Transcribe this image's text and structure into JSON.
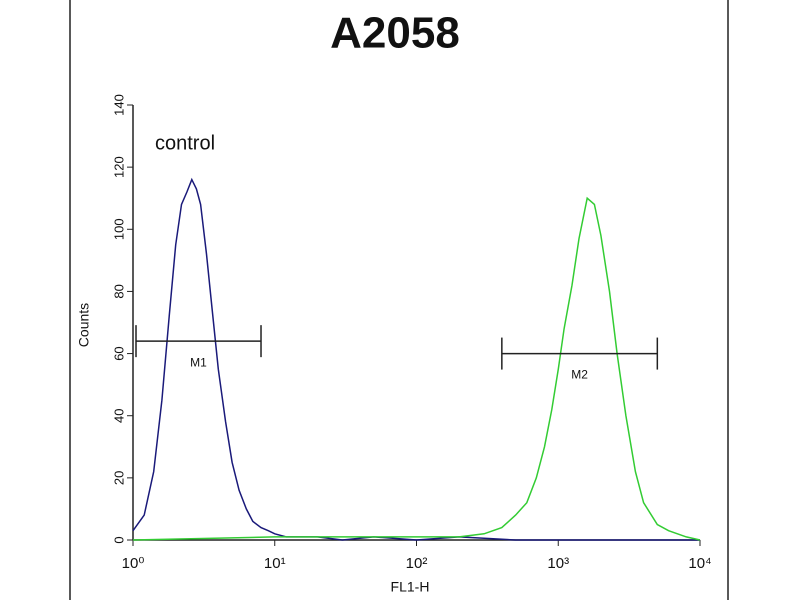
{
  "chart_data": {
    "type": "line",
    "title": "A2058",
    "x_label": "FL1-H",
    "y_label": "Counts",
    "annotation": "control",
    "xscale": "log",
    "xlim": [
      1,
      10000
    ],
    "ylim": [
      0,
      140
    ],
    "xticks": [
      {
        "value": 1,
        "label": "10⁰"
      },
      {
        "value": 10,
        "label": "10¹"
      },
      {
        "value": 100,
        "label": "10²"
      },
      {
        "value": 1000,
        "label": "10³"
      },
      {
        "value": 10000,
        "label": "10⁴"
      }
    ],
    "yticks": [
      0,
      20,
      40,
      60,
      80,
      100,
      120,
      140
    ],
    "series": [
      {
        "name": "control",
        "color": "#1a1a7a",
        "x": [
          1,
          1.2,
          1.4,
          1.6,
          1.8,
          2.0,
          2.2,
          2.4,
          2.6,
          2.8,
          3.0,
          3.3,
          3.6,
          4.0,
          4.5,
          5,
          5.6,
          6.3,
          7,
          8,
          9,
          10,
          12,
          15,
          20,
          30,
          50,
          100,
          200,
          500,
          1000,
          3000,
          10000
        ],
        "values": [
          3,
          8,
          22,
          45,
          72,
          95,
          108,
          112,
          116,
          113,
          108,
          92,
          75,
          55,
          38,
          25,
          16,
          10,
          6,
          4,
          3,
          2,
          1,
          1,
          1,
          0,
          1,
          0,
          1,
          0,
          0,
          0,
          0
        ]
      },
      {
        "name": "A2058",
        "color": "#33cc33",
        "x": [
          1,
          10,
          50,
          100,
          200,
          300,
          400,
          500,
          600,
          700,
          800,
          900,
          1000,
          1100,
          1250,
          1400,
          1600,
          1800,
          2000,
          2300,
          2600,
          3000,
          3500,
          4000,
          5000,
          6000,
          8000,
          10000
        ],
        "values": [
          0,
          1,
          1,
          1,
          1,
          2,
          4,
          8,
          12,
          20,
          30,
          42,
          55,
          68,
          82,
          97,
          110,
          108,
          98,
          80,
          60,
          40,
          22,
          12,
          5,
          3,
          1,
          0
        ]
      }
    ],
    "markers": [
      {
        "label": "M1",
        "range": [
          1.05,
          8
        ],
        "y": 64
      },
      {
        "label": "M2",
        "range": [
          400,
          5000
        ],
        "y": 60
      }
    ]
  }
}
